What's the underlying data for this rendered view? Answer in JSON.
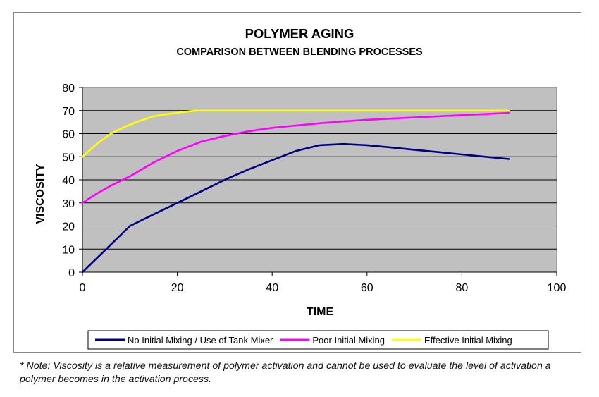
{
  "note": "* Note: Viscosity is a relative measurement of polymer activation and cannot be used to evaluate the level of activation a polymer becomes in the activation process.",
  "chart_data": {
    "type": "line",
    "title": "POLYMER AGING",
    "subtitle": "COMPARISON BETWEEN BLENDING PROCESSES",
    "xlabel": "TIME",
    "ylabel": "VISCOSITY",
    "xlim": [
      0,
      100
    ],
    "ylim": [
      0,
      80
    ],
    "xticks": [
      "0",
      "20",
      "40",
      "60",
      "80",
      "100"
    ],
    "yticks": [
      "0",
      "10",
      "20",
      "30",
      "40",
      "50",
      "60",
      "70",
      "80"
    ],
    "grid": "horizontal",
    "legend_position": "bottom",
    "plot_background": "#c0c0c0",
    "series": [
      {
        "name": "No Initial Mixing / Use of Tank Mixer",
        "color": "#000080",
        "x": [
          0,
          5,
          10,
          15,
          20,
          25,
          30,
          35,
          40,
          45,
          50,
          55,
          60,
          65,
          70,
          75,
          80,
          85,
          90
        ],
        "y": [
          0,
          10,
          20,
          25,
          30,
          35,
          40,
          44.5,
          48.5,
          52.5,
          55,
          55.5,
          55,
          54,
          53,
          52,
          51,
          50,
          49
        ]
      },
      {
        "name": "Poor Initial Mixing",
        "color": "#ff00ff",
        "x": [
          0,
          3,
          6,
          10,
          15,
          20,
          25,
          30,
          35,
          40,
          45,
          50,
          55,
          60,
          65,
          70,
          75,
          80,
          85,
          90
        ],
        "y": [
          30,
          34,
          37.5,
          41.5,
          47.5,
          52.5,
          56.5,
          59,
          61,
          62.5,
          63.5,
          64.5,
          65.3,
          66,
          66.5,
          67,
          67.5,
          68,
          68.5,
          69
        ]
      },
      {
        "name": "Effective Initial Mixing",
        "color": "#ffff00",
        "x": [
          0,
          3,
          6,
          9,
          12,
          15,
          18,
          21,
          24,
          30,
          40,
          50,
          60,
          70,
          80,
          90
        ],
        "y": [
          50,
          55.5,
          60,
          63,
          65.5,
          67.5,
          68.5,
          69.3,
          70,
          70,
          70,
          70,
          70,
          70,
          70,
          70
        ]
      }
    ]
  }
}
